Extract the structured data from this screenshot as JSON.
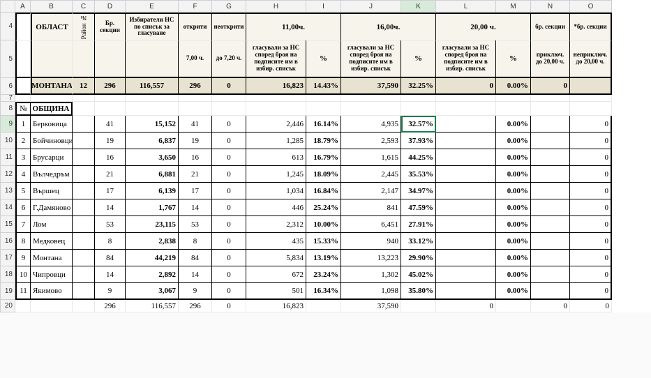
{
  "columns": [
    "A",
    "B",
    "C",
    "D",
    "E",
    "F",
    "G",
    "H",
    "I",
    "J",
    "K",
    "L",
    "M",
    "N",
    "O"
  ],
  "row_nums": [
    4,
    5,
    6,
    7,
    8,
    9,
    10,
    11,
    12,
    13,
    14,
    15,
    16,
    17,
    18,
    19,
    20
  ],
  "selected_col": "K",
  "selected_row": 9,
  "header": {
    "oblast": "ОБЛАСТ",
    "rayon": "Район №",
    "br_sekcii": "Бр. секции",
    "izbirateli": "Избиратели НС по списък за гласуване",
    "otkriti": "открити",
    "neotkriti": "неоткрити",
    "t7": "7,00 ч.",
    "t720": "до 7,20 ч.",
    "t11": "11,00ч.",
    "t16": "16,00ч.",
    "t20": "20,00 ч.",
    "glas": "гласували за НС според броя на подписите им  в избир. списък",
    "pct": "%",
    "br_sekcii2": "бр. секции",
    "star_br": "*бр. секции",
    "prikl": "приключ. до 20,00 ч.",
    "neprikl": "неприключ. до 20,00 ч."
  },
  "summary": {
    "name": "МОНТАНА",
    "rayon": "12",
    "sekcii": "296",
    "izb": "116,557",
    "otkr": "296",
    "neotkr": "0",
    "v11": "16,823",
    "p11": "14.43%",
    "v16": "37,590",
    "p16": "32.25%",
    "v20": "0",
    "p20": "0.00%",
    "prikl": "0"
  },
  "obshtina_label": "ОБЩИНА",
  "num_label": "№",
  "rows": [
    {
      "n": "1",
      "name": "Берковица",
      "sek": "41",
      "izb": "15,152",
      "otk": "41",
      "neo": "0",
      "v11": "2,446",
      "p11": "16.14%",
      "v16": "4,935",
      "p16": "32.57%",
      "v20": "",
      "p20": "0.00%",
      "pr": "",
      "np": "0"
    },
    {
      "n": "2",
      "name": "Бойчиновци",
      "sek": "19",
      "izb": "6,837",
      "otk": "19",
      "neo": "0",
      "v11": "1,285",
      "p11": "18.79%",
      "v16": "2,593",
      "p16": "37.93%",
      "v20": "",
      "p20": "0.00%",
      "pr": "",
      "np": "0"
    },
    {
      "n": "3",
      "name": "Брусарци",
      "sek": "16",
      "izb": "3,650",
      "otk": "16",
      "neo": "0",
      "v11": "613",
      "p11": "16.79%",
      "v16": "1,615",
      "p16": "44.25%",
      "v20": "",
      "p20": "0.00%",
      "pr": "",
      "np": "0"
    },
    {
      "n": "4",
      "name": "Вълчедръм",
      "sek": "21",
      "izb": "6,881",
      "otk": "21",
      "neo": "0",
      "v11": "1,245",
      "p11": "18.09%",
      "v16": "2,445",
      "p16": "35.53%",
      "v20": "",
      "p20": "0.00%",
      "pr": "",
      "np": "0"
    },
    {
      "n": "5",
      "name": "Вършец",
      "sek": "17",
      "izb": "6,139",
      "otk": "17",
      "neo": "0",
      "v11": "1,034",
      "p11": "16.84%",
      "v16": "2,147",
      "p16": "34.97%",
      "v20": "",
      "p20": "0.00%",
      "pr": "",
      "np": "0"
    },
    {
      "n": "6",
      "name": "Г.Дамяново",
      "sek": "14",
      "izb": "1,767",
      "otk": "14",
      "neo": "0",
      "v11": "446",
      "p11": "25.24%",
      "v16": "841",
      "p16": "47.59%",
      "v20": "",
      "p20": "0.00%",
      "pr": "",
      "np": "0"
    },
    {
      "n": "7",
      "name": "Лом",
      "sek": "53",
      "izb": "23,115",
      "otk": "53",
      "neo": "0",
      "v11": "2,312",
      "p11": "10.00%",
      "v16": "6,451",
      "p16": "27.91%",
      "v20": "",
      "p20": "0.00%",
      "pr": "",
      "np": "0"
    },
    {
      "n": "8",
      "name": "Медковец",
      "sek": "8",
      "izb": "2,838",
      "otk": "8",
      "neo": "0",
      "v11": "435",
      "p11": "15.33%",
      "v16": "940",
      "p16": "33.12%",
      "v20": "",
      "p20": "0.00%",
      "pr": "",
      "np": "0"
    },
    {
      "n": "9",
      "name": "Монтана",
      "sek": "84",
      "izb": "44,219",
      "otk": "84",
      "neo": "0",
      "v11": "5,834",
      "p11": "13.19%",
      "v16": "13,223",
      "p16": "29.90%",
      "v20": "",
      "p20": "0.00%",
      "pr": "",
      "np": "0"
    },
    {
      "n": "10",
      "name": "Чипровци",
      "sek": "14",
      "izb": "2,892",
      "otk": "14",
      "neo": "0",
      "v11": "672",
      "p11": "23.24%",
      "v16": "1,302",
      "p16": "45.02%",
      "v20": "",
      "p20": "0.00%",
      "pr": "",
      "np": "0"
    },
    {
      "n": "11",
      "name": "Якимово",
      "sek": "9",
      "izb": "3,067",
      "otk": "9",
      "neo": "0",
      "v11": "501",
      "p11": "16.34%",
      "v16": "1,098",
      "p16": "35.80%",
      "v20": "",
      "p20": "0.00%",
      "pr": "",
      "np": "0"
    }
  ],
  "totals": {
    "sek": "296",
    "izb": "116,557",
    "otk": "296",
    "neo": "0",
    "v11": "16,823",
    "v16": "37,590",
    "v20": "0",
    "pr": "0",
    "np": "0"
  }
}
